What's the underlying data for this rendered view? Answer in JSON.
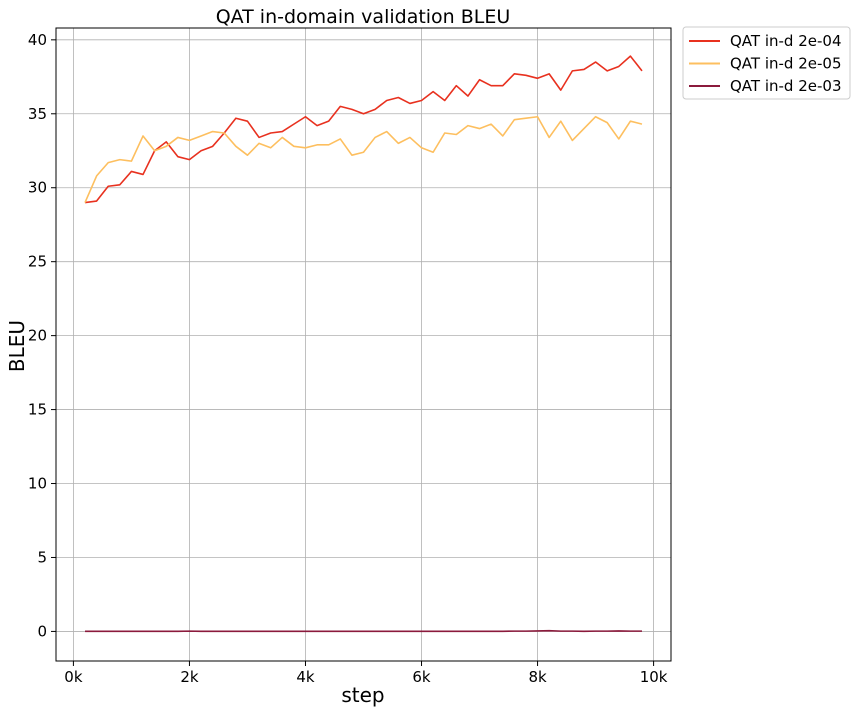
{
  "chart_data": {
    "type": "line",
    "title": "QAT in-domain validation BLEU",
    "xlabel": "step",
    "ylabel": "BLEU",
    "xlim": [
      -300,
      10300
    ],
    "ylim": [
      -2,
      40.8
    ],
    "x_ticks": [
      0,
      2000,
      4000,
      6000,
      8000,
      10000
    ],
    "x_tick_labels": [
      "0k",
      "2k",
      "4k",
      "6k",
      "8k",
      "10k"
    ],
    "y_ticks": [
      0,
      5,
      10,
      15,
      20,
      25,
      30,
      35,
      40
    ],
    "y_tick_labels": [
      "0",
      "5",
      "10",
      "15",
      "20",
      "25",
      "30",
      "35",
      "40"
    ],
    "grid": true,
    "legend_position": "outside-top-right",
    "x": [
      200,
      400,
      600,
      800,
      1000,
      1200,
      1400,
      1600,
      1800,
      2000,
      2200,
      2400,
      2600,
      2800,
      3000,
      3200,
      3400,
      3600,
      3800,
      4000,
      4200,
      4400,
      4600,
      4800,
      5000,
      5200,
      5400,
      5600,
      5800,
      6000,
      6200,
      6400,
      6600,
      6800,
      7000,
      7200,
      7400,
      7600,
      7800,
      8000,
      8200,
      8400,
      8600,
      8800,
      9000,
      9200,
      9400,
      9600,
      9800
    ],
    "series": [
      {
        "name": "QAT in-d 2e-04",
        "color": "#e8311f",
        "values": [
          29.0,
          29.1,
          30.1,
          30.2,
          31.1,
          30.9,
          32.5,
          33.1,
          32.1,
          31.9,
          32.5,
          32.8,
          33.7,
          34.7,
          34.5,
          33.4,
          33.7,
          33.8,
          34.3,
          34.8,
          34.2,
          34.5,
          35.5,
          35.3,
          35.0,
          35.3,
          35.9,
          36.1,
          35.7,
          35.9,
          36.5,
          35.9,
          36.9,
          36.2,
          37.3,
          36.9,
          36.9,
          37.7,
          37.6,
          37.4,
          37.7,
          36.6,
          37.9,
          38.0,
          38.5,
          37.9,
          38.2,
          38.9,
          37.9
        ]
      },
      {
        "name": "QAT in-d 2e-05",
        "color": "#fdbf5f",
        "values": [
          29.0,
          30.8,
          31.7,
          31.9,
          31.8,
          33.5,
          32.5,
          32.8,
          33.4,
          33.2,
          33.5,
          33.8,
          33.7,
          32.8,
          32.2,
          33.0,
          32.7,
          33.4,
          32.8,
          32.7,
          32.9,
          32.9,
          33.3,
          32.2,
          32.4,
          33.4,
          33.8,
          33.0,
          33.4,
          32.7,
          32.4,
          33.7,
          33.6,
          34.2,
          34.0,
          34.3,
          33.5,
          34.6,
          34.7,
          34.8,
          33.4,
          34.5,
          33.2,
          34.0,
          34.8,
          34.4,
          33.3,
          34.5,
          34.3
        ]
      },
      {
        "name": "QAT in-d 2e-03",
        "color": "#8b1a3c",
        "values": [
          0.01,
          0.01,
          0.01,
          0.01,
          0.01,
          0.01,
          0.01,
          0.01,
          0.01,
          0.02,
          0.01,
          0.01,
          0.01,
          0.01,
          0.01,
          0.01,
          0.01,
          0.01,
          0.01,
          0.01,
          0.01,
          0.01,
          0.01,
          0.01,
          0.01,
          0.01,
          0.01,
          0.01,
          0.01,
          0.01,
          0.01,
          0.01,
          0.01,
          0.01,
          0.01,
          0.01,
          0.01,
          0.02,
          0.02,
          0.03,
          0.05,
          0.02,
          0.02,
          0.01,
          0.02,
          0.02,
          0.03,
          0.02,
          0.02
        ]
      }
    ]
  }
}
